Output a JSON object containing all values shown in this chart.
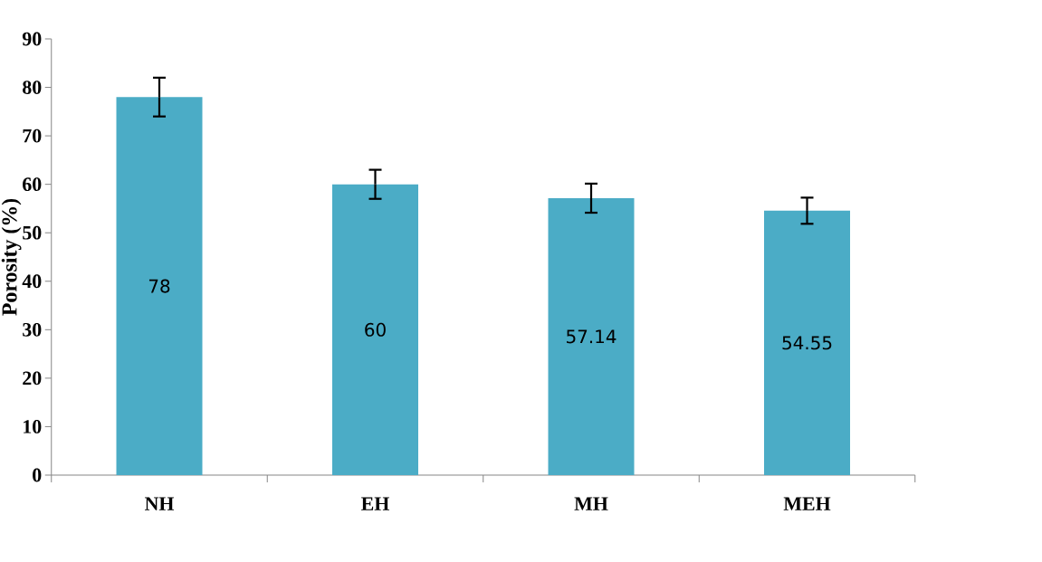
{
  "chart_data": {
    "type": "bar",
    "ylabel": "Porosity (%)",
    "categories": [
      "NH",
      "EH",
      "MH",
      "MEH"
    ],
    "values": [
      78,
      60,
      57.14,
      54.55
    ],
    "errors": [
      4,
      3,
      3,
      2.7
    ],
    "color": "#4bacc6",
    "ylim": [
      0,
      90
    ],
    "yticks": [
      0,
      10,
      20,
      30,
      40,
      50,
      60,
      70,
      80,
      90
    ],
    "data_labels": true,
    "grid": false
  }
}
